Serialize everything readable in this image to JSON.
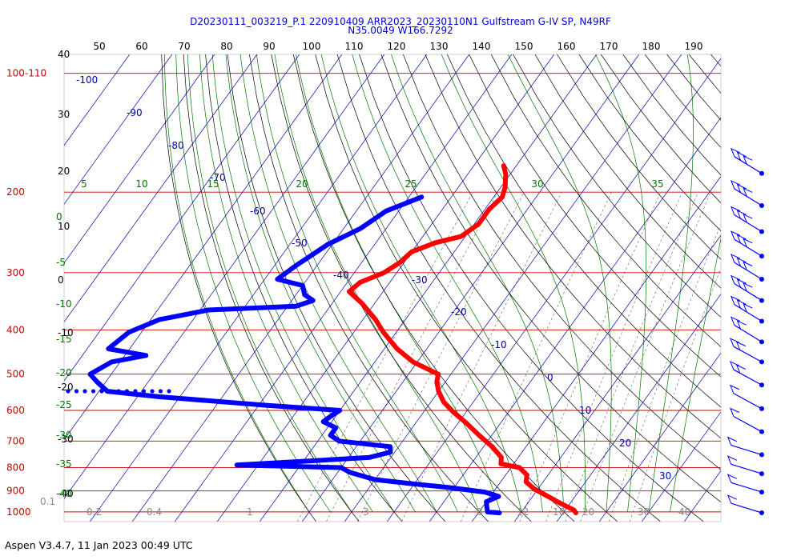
{
  "header": {
    "line1": "D20230111_003219_P.1 220910409 ARR2023_20230110N1 Gulfstream G-IV SP, N49RF",
    "line2": "N35.0049 W166.7292"
  },
  "footer": "Aspen V3.4.7, 11 Jan 2023  00:49 UTC",
  "colors": {
    "isobar": "#cc0000",
    "isotherm": "#0000aa",
    "dry_adiabat": "#000000",
    "moist_adiabat": "#007700",
    "mixing_ratio": "#666666",
    "temperature": "#ff0000",
    "dewpoint": "#0000ff"
  },
  "chart_data": {
    "type": "skew-t log-p",
    "pressure_axis": {
      "labels": [
        "100-110",
        "200",
        "300",
        "400",
        "500",
        "600",
        "700",
        "800",
        "900",
        "1000"
      ],
      "levels_hPa": [
        110,
        200,
        300,
        400,
        500,
        600,
        700,
        800,
        900,
        1000
      ]
    },
    "height_axis": {
      "labels": [
        "40",
        "30",
        "20",
        "10",
        "0",
        "-10",
        "-20",
        "-30",
        "-40"
      ]
    },
    "top_scale": {
      "labels": [
        "50",
        "60",
        "70",
        "80",
        "90",
        "100",
        "110",
        "120",
        "130",
        "140",
        "150",
        "160",
        "170",
        "180",
        "190"
      ]
    },
    "isotherm_labels": [
      "-100",
      "-90",
      "-80",
      "-70",
      "-60",
      "-50",
      "-40",
      "-30",
      "-20",
      "-10",
      "0",
      "10",
      "20",
      "30"
    ],
    "moist_adiabat_labels_top": [
      "5",
      "10",
      "15",
      "20",
      "25",
      "30",
      "35"
    ],
    "moist_adiabat_labels_left": [
      "0",
      "-5",
      "-10",
      "-15",
      "-20",
      "-25",
      "-30",
      "-35",
      "-40"
    ],
    "mixing_ratio_labels": [
      "0.1",
      "0.2",
      "0.4",
      "1",
      "3",
      "8",
      "12",
      "16",
      "20",
      "30",
      "40"
    ],
    "temperature_profile": [
      {
        "p": 175,
        "t": -53
      },
      {
        "p": 183,
        "t": -51
      },
      {
        "p": 195,
        "t": -49
      },
      {
        "p": 205,
        "t": -48
      },
      {
        "p": 218,
        "t": -49
      },
      {
        "p": 235,
        "t": -49
      },
      {
        "p": 250,
        "t": -51
      },
      {
        "p": 258,
        "t": -56
      },
      {
        "p": 270,
        "t": -60
      },
      {
        "p": 285,
        "t": -61
      },
      {
        "p": 300,
        "t": -63
      },
      {
        "p": 315,
        "t": -67
      },
      {
        "p": 330,
        "t": -68
      },
      {
        "p": 350,
        "t": -63
      },
      {
        "p": 380,
        "t": -57
      },
      {
        "p": 405,
        "t": -53
      },
      {
        "p": 440,
        "t": -47
      },
      {
        "p": 470,
        "t": -41
      },
      {
        "p": 500,
        "t": -33
      },
      {
        "p": 520,
        "t": -32
      },
      {
        "p": 545,
        "t": -30
      },
      {
        "p": 575,
        "t": -27
      },
      {
        "p": 605,
        "t": -23
      },
      {
        "p": 640,
        "t": -18
      },
      {
        "p": 680,
        "t": -13
      },
      {
        "p": 720,
        "t": -8
      },
      {
        "p": 760,
        "t": -4
      },
      {
        "p": 785,
        "t": -3
      },
      {
        "p": 800,
        "t": 2
      },
      {
        "p": 830,
        "t": 5
      },
      {
        "p": 860,
        "t": 6
      },
      {
        "p": 890,
        "t": 9
      },
      {
        "p": 920,
        "t": 13
      },
      {
        "p": 960,
        "t": 18
      },
      {
        "p": 990,
        "t": 22
      },
      {
        "p": 1005,
        "t": 23
      }
    ],
    "dewpoint_profile": [
      {
        "p": 205,
        "t": -67
      },
      {
        "p": 220,
        "t": -73
      },
      {
        "p": 240,
        "t": -76
      },
      {
        "p": 260,
        "t": -81
      },
      {
        "p": 290,
        "t": -85
      },
      {
        "p": 310,
        "t": -87
      },
      {
        "p": 320,
        "t": -80
      },
      {
        "p": 335,
        "t": -78
      },
      {
        "p": 345,
        "t": -75
      },
      {
        "p": 355,
        "t": -78
      },
      {
        "p": 362,
        "t": -98
      },
      {
        "p": 380,
        "t": -108
      },
      {
        "p": 405,
        "t": -113
      },
      {
        "p": 440,
        "t": -115
      },
      {
        "p": 455,
        "t": -105
      },
      {
        "p": 470,
        "t": -112
      },
      {
        "p": 500,
        "t": -115
      },
      {
        "p": 520,
        "t": -112
      },
      {
        "p": 545,
        "t": -108
      },
      {
        "p": 560,
        "t": -95
      },
      {
        "p": 585,
        "t": -68
      },
      {
        "p": 600,
        "t": -50
      },
      {
        "p": 615,
        "t": -51
      },
      {
        "p": 635,
        "t": -52
      },
      {
        "p": 655,
        "t": -48
      },
      {
        "p": 680,
        "t": -48
      },
      {
        "p": 700,
        "t": -45
      },
      {
        "p": 720,
        "t": -32
      },
      {
        "p": 740,
        "t": -31
      },
      {
        "p": 760,
        "t": -35
      },
      {
        "p": 775,
        "t": -50
      },
      {
        "p": 790,
        "t": -65
      },
      {
        "p": 800,
        "t": -40
      },
      {
        "p": 820,
        "t": -37
      },
      {
        "p": 850,
        "t": -30
      },
      {
        "p": 865,
        "t": -22
      },
      {
        "p": 885,
        "t": -11
      },
      {
        "p": 905,
        "t": -2
      },
      {
        "p": 925,
        "t": 2
      },
      {
        "p": 950,
        "t": 0
      },
      {
        "p": 975,
        "t": 1
      },
      {
        "p": 1000,
        "t": 2
      },
      {
        "p": 1005,
        "t": 5
      }
    ],
    "wind_barb_pressures_hPa": [
      182,
      214,
      244,
      276,
      310,
      345,
      383,
      425,
      470,
      528,
      595,
      668,
      750,
      825,
      905,
      1005
    ],
    "isobars_hPa": [
      110,
      200,
      300,
      400,
      500,
      600,
      700,
      800,
      900,
      1000
    ],
    "grid": true
  }
}
